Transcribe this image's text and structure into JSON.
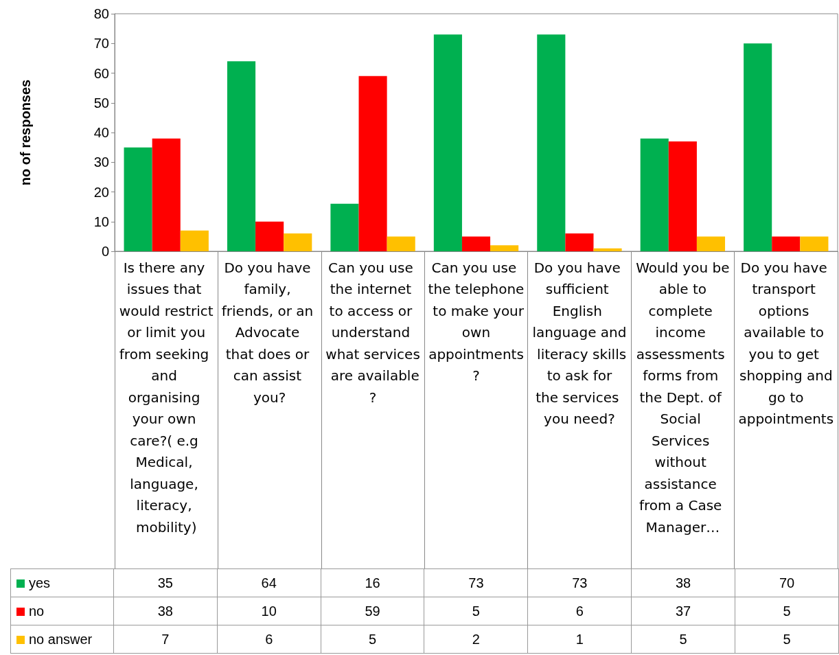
{
  "chart_data": {
    "type": "bar",
    "ylabel": "no of responses",
    "categories": [
      "Is there any issues that would restrict or limit you from seeking and organising your own care?( e.g Medical, language, literacy, mobility)",
      "Do you have family, friends, or an Advocate that does or can assist you?",
      "Can you use the internet to access or understand what services are available?",
      "Can you use the telephone to make your own appointments?",
      "Do you have sufficient English language and literacy skills to ask for the services you need?",
      "Would you be able to complete income assessments forms from the Dept. of Social Services without assistance from a Case Manager…",
      "Do you have transport options available to you to get shopping and go to appointments"
    ],
    "series": [
      {
        "name": "yes",
        "color": "#00b050",
        "values": [
          35,
          64,
          16,
          73,
          73,
          38,
          70
        ]
      },
      {
        "name": "no",
        "color": "#ff0000",
        "values": [
          38,
          10,
          59,
          5,
          6,
          37,
          5
        ]
      },
      {
        "name": "no answer",
        "color": "#ffc000",
        "values": [
          7,
          6,
          5,
          2,
          1,
          5,
          5
        ]
      }
    ],
    "ylim": [
      0,
      80
    ],
    "yticks": [
      0,
      10,
      20,
      30,
      40,
      50,
      60,
      70,
      80
    ],
    "grid": false,
    "legend": "bottom",
    "data_labels": true
  }
}
